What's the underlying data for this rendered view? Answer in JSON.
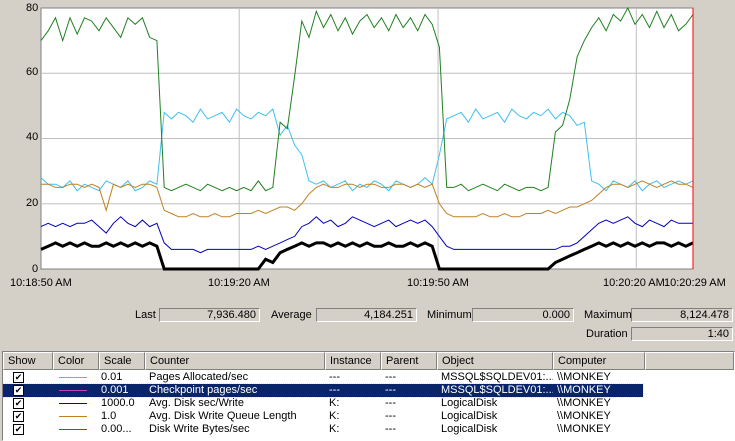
{
  "chart": {
    "y_ticks": [
      "80",
      "60",
      "40",
      "20",
      "0"
    ],
    "x_ticks": [
      "10:18:50 AM",
      "10:19:20 AM",
      "10:19:50 AM",
      "10:20:20 AM",
      "10:20:29 AM"
    ],
    "ylim": [
      0,
      80
    ],
    "grid_color": "#c0c0c0",
    "timebar_color": "#ff0000"
  },
  "stats": {
    "last_label": "Last",
    "last_value": "7,936.480",
    "average_label": "Average",
    "average_value": "4,184.251",
    "minimum_label": "Minimum",
    "minimum_value": "0.000",
    "maximum_label": "Maximum",
    "maximum_value": "8,124.478",
    "duration_label": "Duration",
    "duration_value": "1:40"
  },
  "legend": {
    "headers": [
      "Show",
      "Color",
      "Scale",
      "Counter",
      "Instance",
      "Parent",
      "Object",
      "Computer"
    ],
    "rows": [
      {
        "scale": "0.01",
        "counter": "Pages Allocated/sec",
        "instance": "---",
        "parent": "---",
        "object": "MSSQL$SQLDEV01:...",
        "computer": "\\\\MONKEY",
        "color": "#40c0f0",
        "selected": false
      },
      {
        "scale": "0.001",
        "counter": "Checkpoint pages/sec",
        "instance": "---",
        "parent": "---",
        "object": "MSSQL$SQLDEV01:...",
        "computer": "\\\\MONKEY",
        "color": "#c040c0",
        "selected": true
      },
      {
        "scale": "1000.0",
        "counter": "Avg. Disk sec/Write",
        "instance": "K:",
        "parent": "---",
        "object": "LogicalDisk",
        "computer": "\\\\MONKEY",
        "color": "#0000c0",
        "selected": false
      },
      {
        "scale": "1.0",
        "counter": "Avg. Disk Write Queue Length",
        "instance": "K:",
        "parent": "---",
        "object": "LogicalDisk",
        "computer": "\\\\MONKEY",
        "color": "#c08020",
        "selected": false
      },
      {
        "scale": "0.00...",
        "counter": "Disk Write Bytes/sec",
        "instance": "K:",
        "parent": "---",
        "object": "LogicalDisk",
        "computer": "\\\\MONKEY",
        "color": "#208020",
        "selected": false
      }
    ]
  },
  "chart_data": {
    "type": "line",
    "ylim": [
      0,
      80
    ],
    "x_tick_labels": [
      "10:18:50 AM",
      "10:19:20 AM",
      "10:19:50 AM",
      "10:20:20 AM",
      "10:20:29 AM"
    ],
    "series": [
      {
        "name": "Pages Allocated/sec",
        "color": "#40c0f0",
        "width": 1,
        "values": [
          28,
          26,
          26,
          25,
          27,
          24,
          26,
          25,
          24,
          27,
          26,
          25,
          27,
          24,
          25,
          27,
          26,
          48,
          46,
          48,
          47,
          45,
          49,
          46,
          47,
          48,
          45,
          49,
          47,
          46,
          48,
          47,
          49,
          41,
          44,
          38,
          35,
          27,
          26,
          27,
          25,
          26,
          27,
          24,
          26,
          25,
          27,
          26,
          24,
          27,
          26,
          25,
          26,
          28,
          26,
          35,
          46,
          47,
          48,
          45,
          49,
          46,
          47,
          48,
          45,
          49,
          47,
          46,
          48,
          47,
          49,
          46,
          48,
          47,
          44,
          45,
          27,
          26,
          24,
          27,
          26,
          25,
          27,
          24,
          26,
          27,
          25,
          26,
          27,
          26,
          27
        ]
      },
      {
        "name": "Avg. Disk Write Queue Length",
        "color": "#c08020",
        "width": 1,
        "values": [
          26,
          26,
          25,
          25,
          26,
          26,
          25,
          26,
          25,
          18,
          26,
          25,
          26,
          25,
          26,
          26,
          25,
          18,
          17,
          16,
          16,
          17,
          16,
          16,
          17,
          16,
          16,
          17,
          17,
          17,
          18,
          17,
          18,
          19,
          19,
          18,
          20,
          23,
          25,
          26,
          25,
          25,
          26,
          26,
          25,
          26,
          26,
          25,
          25,
          26,
          26,
          25,
          26,
          25,
          26,
          20,
          17,
          16,
          16,
          16,
          16,
          17,
          16,
          16,
          17,
          16,
          16,
          17,
          17,
          17,
          18,
          17,
          18,
          19,
          19,
          20,
          21,
          23,
          25,
          26,
          26,
          25,
          26,
          27,
          26,
          25,
          26,
          27,
          26,
          26,
          25
        ]
      },
      {
        "name": "Avg. Disk sec/Write",
        "color": "#0000c0",
        "width": 1,
        "values": [
          13,
          14,
          13,
          14,
          13,
          14,
          14,
          15,
          13,
          11,
          14,
          16,
          14,
          13,
          15,
          13,
          14,
          8,
          6,
          6,
          6,
          6,
          5,
          6,
          6,
          6,
          6,
          6,
          6,
          6,
          7,
          6,
          7,
          8,
          9,
          10,
          13,
          14,
          16,
          14,
          15,
          13,
          14,
          16,
          15,
          14,
          13,
          14,
          15,
          13,
          14,
          15,
          14,
          15,
          13,
          10,
          7,
          6,
          6,
          6,
          6,
          6,
          6,
          6,
          6,
          6,
          6,
          6,
          6,
          6,
          6,
          6,
          7,
          7,
          8,
          10,
          12,
          14,
          15,
          14,
          15,
          16,
          14,
          13,
          15,
          14,
          13,
          15,
          14,
          14,
          14
        ]
      },
      {
        "name": "Disk Write Bytes/sec",
        "color": "#208020",
        "width": 1,
        "values": [
          70,
          73,
          77,
          70,
          77,
          72,
          77,
          76,
          73,
          77,
          74,
          71,
          77,
          75,
          77,
          71,
          70,
          25,
          24,
          25,
          26,
          25,
          24,
          26,
          25,
          24,
          25,
          24,
          25,
          24,
          27,
          24,
          25,
          45,
          43,
          59,
          76,
          71,
          79,
          74,
          78,
          73,
          77,
          72,
          76,
          78,
          74,
          77,
          73,
          78,
          74,
          77,
          73,
          78,
          75,
          68,
          25,
          25,
          26,
          24,
          25,
          26,
          25,
          24,
          26,
          25,
          24,
          25,
          25,
          24,
          25,
          42,
          44,
          52,
          65,
          70,
          74,
          77,
          73,
          78,
          76,
          80,
          75,
          78,
          74,
          79,
          74,
          78,
          73,
          75,
          78
        ]
      },
      {
        "name": "Checkpoint pages/sec",
        "color": "#000000",
        "width": 3,
        "values": [
          6,
          7,
          8,
          7,
          8,
          7,
          8,
          7,
          7,
          8,
          7,
          8,
          7,
          8,
          7,
          8,
          7,
          0,
          0,
          0,
          0,
          0,
          0,
          0,
          0,
          0,
          0,
          0,
          0,
          0,
          0,
          3,
          2,
          5,
          6,
          7,
          8,
          7,
          8,
          8,
          7,
          8,
          7,
          8,
          7,
          8,
          7,
          7,
          8,
          7,
          7,
          8,
          7,
          8,
          7,
          0,
          0,
          0,
          0,
          0,
          0,
          0,
          0,
          0,
          0,
          0,
          0,
          0,
          0,
          0,
          0,
          2,
          3,
          4,
          5,
          6,
          7,
          8,
          7,
          8,
          7,
          8,
          7,
          8,
          7,
          8,
          8,
          7,
          8,
          7,
          8
        ]
      }
    ]
  }
}
